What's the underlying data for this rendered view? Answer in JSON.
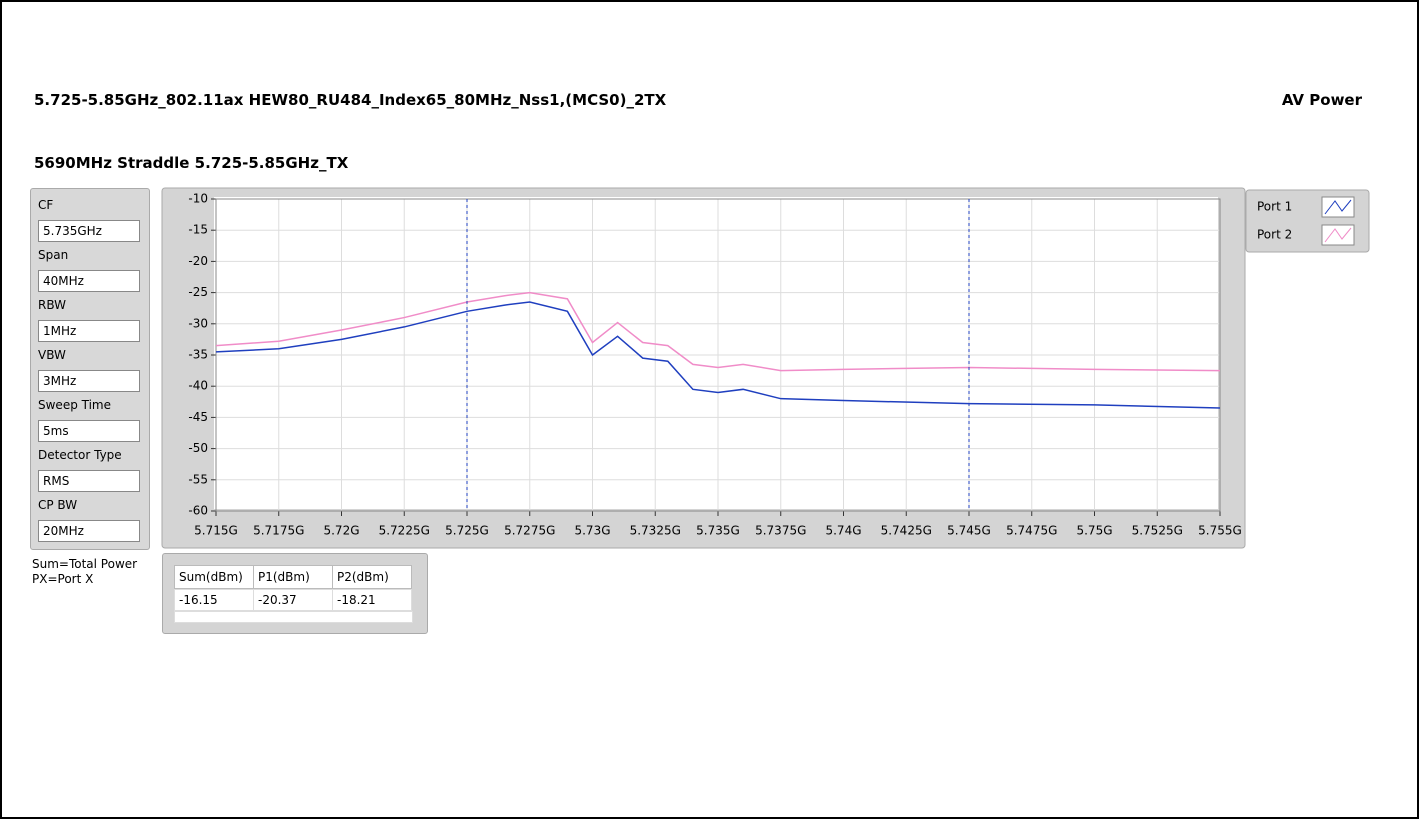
{
  "header": {
    "title": "5.725-5.85GHz_802.11ax HEW80_RU484_Index65_80MHz_Nss1,(MCS0)_2TX",
    "mode": "AV Power",
    "subtitle": "5690MHz Straddle 5.725-5.85GHz_TX"
  },
  "settings": [
    {
      "label": "CF",
      "value": "5.735GHz"
    },
    {
      "label": "Span",
      "value": "40MHz"
    },
    {
      "label": "RBW",
      "value": "1MHz"
    },
    {
      "label": "VBW",
      "value": "3MHz"
    },
    {
      "label": "Sweep Time",
      "value": "5ms"
    },
    {
      "label": "Detector Type",
      "value": "RMS"
    },
    {
      "label": "CP BW",
      "value": "20MHz"
    }
  ],
  "notes": [
    "Sum=Total Power",
    "PX=Port X"
  ],
  "table": {
    "header": [
      "Sum(dBm)",
      "P1(dBm)",
      "P2(dBm)"
    ],
    "rows": [
      [
        "-16.15",
        "-20.37",
        "-18.21"
      ]
    ]
  },
  "chart_data": {
    "type": "line",
    "x": [
      5.715,
      5.7175,
      5.72,
      5.7225,
      5.725,
      5.7265,
      5.7275,
      5.729,
      5.73,
      5.731,
      5.732,
      5.733,
      5.734,
      5.735,
      5.736,
      5.7375,
      5.74,
      5.745,
      5.75,
      5.755
    ],
    "series": [
      {
        "name": "Port 1",
        "color": "#1f3fbf",
        "values": [
          -34.5,
          -34,
          -32.5,
          -30.5,
          -28,
          -27,
          -26.5,
          -28,
          -35,
          -32,
          -35.5,
          -36,
          -40.5,
          -41,
          -40.5,
          -42,
          -42.3,
          -42.8,
          -43,
          -43.5
        ]
      },
      {
        "name": "Port 2",
        "color": "#f08cc8",
        "values": [
          -33.5,
          -32.8,
          -31,
          -29,
          -26.5,
          -25.5,
          -25,
          -26,
          -33,
          -29.8,
          -33,
          -33.5,
          -36.5,
          -37,
          -36.5,
          -37.5,
          -37.3,
          -37,
          -37.3,
          -37.5
        ]
      }
    ],
    "cursors": [
      5.725,
      5.745
    ],
    "xlim": [
      5.715,
      5.755
    ],
    "ylim": [
      -60,
      -10
    ],
    "xticks": [
      {
        "value": 5.715,
        "label": "5.715G"
      },
      {
        "value": 5.7175,
        "label": "5.7175G"
      },
      {
        "value": 5.72,
        "label": "5.72G"
      },
      {
        "value": 5.7225,
        "label": "5.7225G"
      },
      {
        "value": 5.725,
        "label": "5.725G"
      },
      {
        "value": 5.7275,
        "label": "5.7275G"
      },
      {
        "value": 5.73,
        "label": "5.73G"
      },
      {
        "value": 5.7325,
        "label": "5.7325G"
      },
      {
        "value": 5.735,
        "label": "5.735G"
      },
      {
        "value": 5.7375,
        "label": "5.7375G"
      },
      {
        "value": 5.74,
        "label": "5.74G"
      },
      {
        "value": 5.7425,
        "label": "5.7425G"
      },
      {
        "value": 5.745,
        "label": "5.745G"
      },
      {
        "value": 5.7475,
        "label": "5.7475G"
      },
      {
        "value": 5.75,
        "label": "5.75G"
      },
      {
        "value": 5.7525,
        "label": "5.7525G"
      },
      {
        "value": 5.755,
        "label": "5.755G"
      }
    ],
    "yticks": [
      -10,
      -15,
      -20,
      -25,
      -30,
      -35,
      -40,
      -45,
      -50,
      -55,
      -60
    ],
    "grid": true
  }
}
